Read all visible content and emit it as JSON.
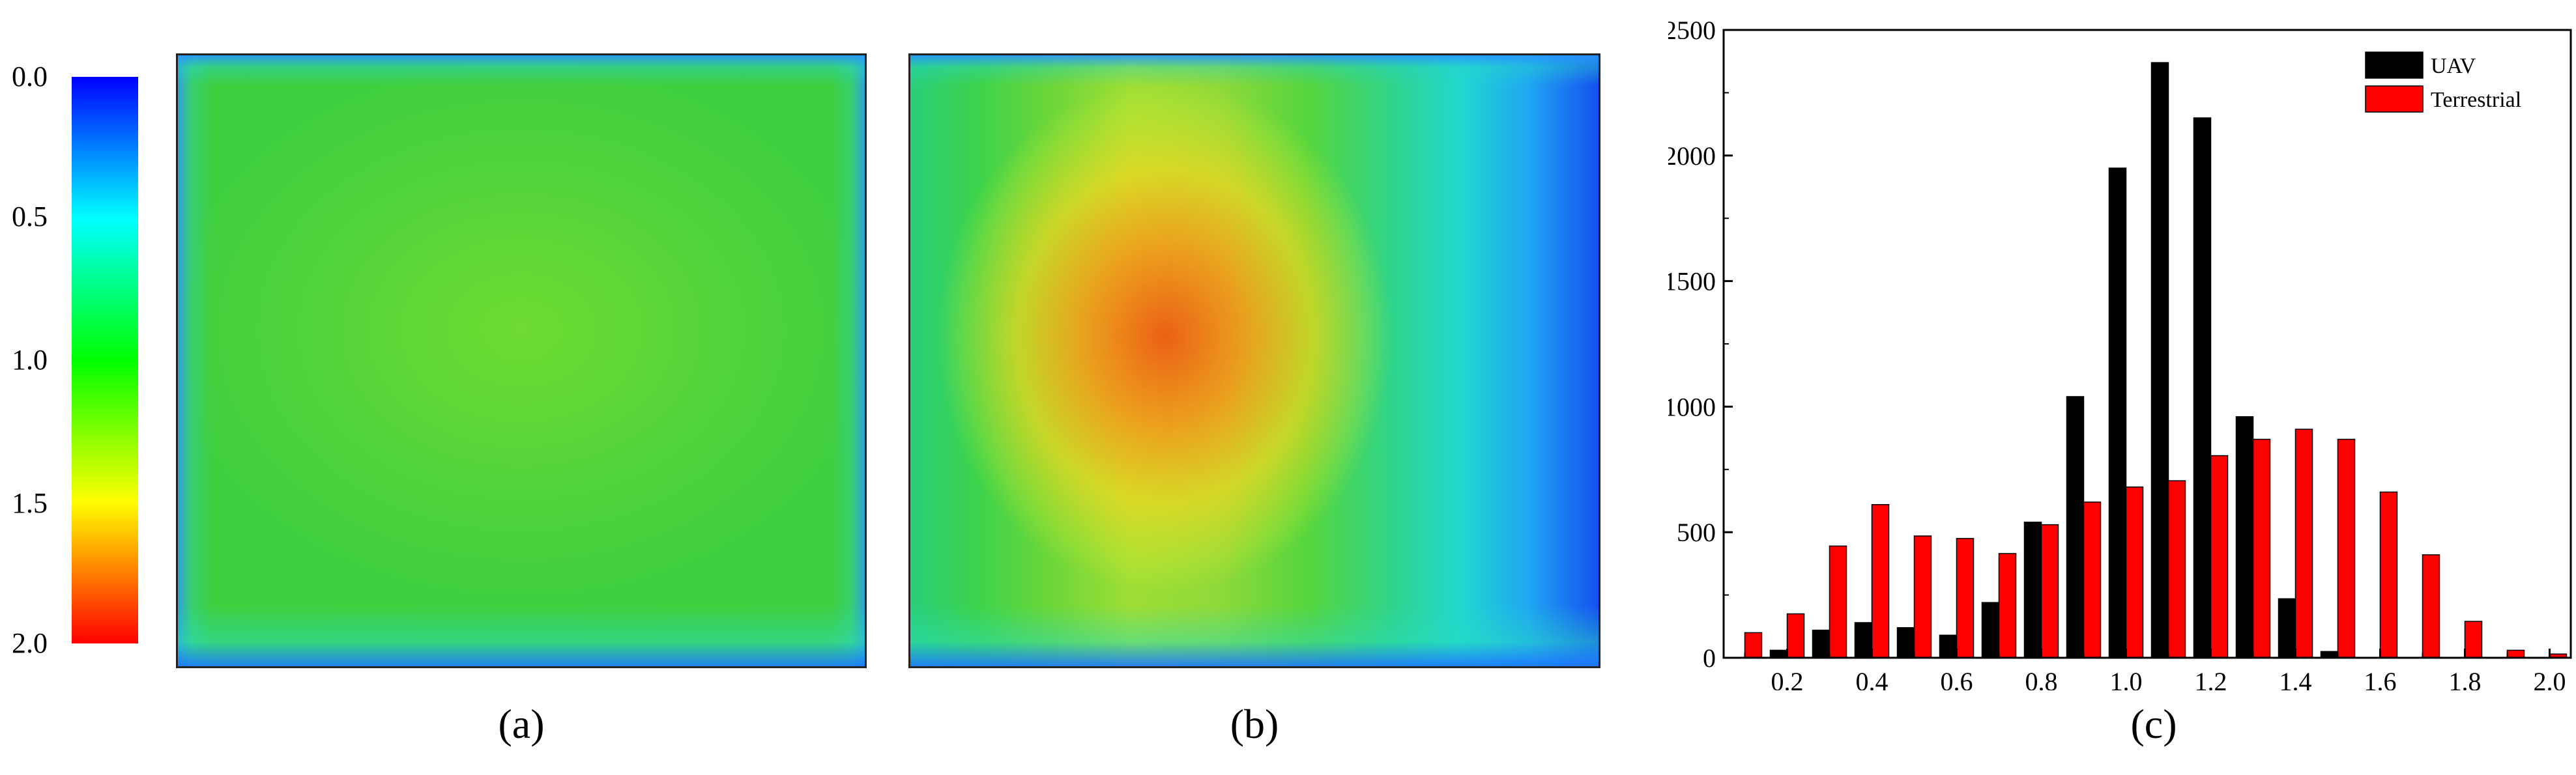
{
  "colorbar": {
    "ticks": [
      "0.0",
      "0.5",
      "1.0",
      "1.5",
      "2.0"
    ],
    "colors": [
      "#0000ff",
      "#00ffff",
      "#00ff00",
      "#ffff00",
      "#ff0000"
    ]
  },
  "panels": {
    "a_label": "(a)",
    "b_label": "(b)",
    "c_label": "(c)"
  },
  "chart_data": {
    "type": "bar",
    "title": "",
    "xlabel": "",
    "ylabel": "",
    "xlim": [
      0.05,
      2.05
    ],
    "ylim": [
      0,
      2500
    ],
    "x_ticks": [
      "0.2",
      "0.4",
      "0.6",
      "0.8",
      "1.0",
      "1.2",
      "1.4",
      "1.6",
      "1.8",
      "2.0"
    ],
    "y_ticks": [
      "0",
      "500",
      "1000",
      "1500",
      "2000",
      "2500"
    ],
    "x": [
      0.1,
      0.2,
      0.3,
      0.4,
      0.5,
      0.6,
      0.7,
      0.8,
      0.9,
      1.0,
      1.1,
      1.2,
      1.3,
      1.4,
      1.5,
      1.6,
      1.7,
      1.8,
      1.9,
      2.0
    ],
    "legend_position": "top-right",
    "grid": false,
    "series": [
      {
        "name": "UAV",
        "color": "#000000",
        "values": [
          0,
          30,
          110,
          140,
          120,
          90,
          220,
          540,
          1040,
          1950,
          2370,
          2150,
          960,
          235,
          25,
          0,
          0,
          0,
          0,
          0
        ]
      },
      {
        "name": "Terrestrial",
        "color": "#ff0000",
        "values": [
          100,
          175,
          445,
          610,
          485,
          475,
          415,
          530,
          620,
          680,
          705,
          805,
          870,
          910,
          870,
          660,
          410,
          145,
          30,
          15
        ]
      }
    ]
  }
}
